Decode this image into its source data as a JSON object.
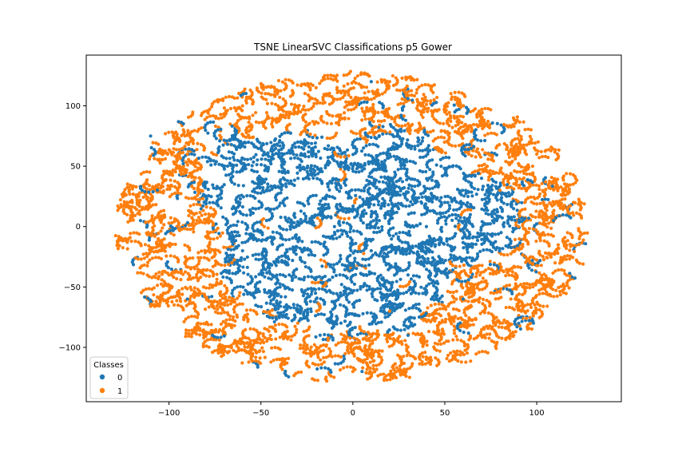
{
  "chart_data": {
    "type": "scatter",
    "title": "TSNE LinearSVC Classifications p5 Gower",
    "xlabel": "",
    "ylabel": "",
    "xlim": [
      -145,
      146
    ],
    "ylim": [
      -145,
      142
    ],
    "xticks": [
      -100,
      -50,
      0,
      50,
      100
    ],
    "yticks": [
      -100,
      -50,
      0,
      50,
      100
    ],
    "xtick_labels": [
      "−100",
      "−50",
      "0",
      "50",
      "100"
    ],
    "ytick_labels": [
      "−100",
      "−50",
      "0",
      "50",
      "100"
    ],
    "grid": false,
    "legend": {
      "title": "Classes",
      "position": "lower-left",
      "entries": [
        "0",
        "1"
      ]
    },
    "series": [
      {
        "name": "0",
        "color": "#1f77b4",
        "description": "dense central blob of t-SNE embedded points",
        "sample_points": [
          [
            -50,
            40
          ],
          [
            -30,
            20
          ],
          [
            -10,
            0
          ],
          [
            10,
            -20
          ],
          [
            30,
            -40
          ],
          [
            50,
            20
          ],
          [
            70,
            40
          ],
          [
            -60,
            -20
          ],
          [
            0,
            50
          ],
          [
            20,
            60
          ],
          [
            40,
            0
          ],
          [
            -20,
            -60
          ],
          [
            60,
            -60
          ],
          [
            -40,
            70
          ],
          [
            10,
            120
          ],
          [
            5,
            -120
          ],
          [
            -110,
            75
          ],
          [
            60,
            60
          ],
          [
            -90,
            -60
          ],
          [
            30,
            -90
          ]
        ]
      },
      {
        "name": "1",
        "color": "#ff7f0e",
        "description": "outer ring of t-SNE embedded points",
        "sample_points": [
          [
            -120,
            20
          ],
          [
            -100,
            -40
          ],
          [
            -90,
            60
          ],
          [
            -60,
            100
          ],
          [
            -20,
            115
          ],
          [
            20,
            120
          ],
          [
            60,
            100
          ],
          [
            100,
            60
          ],
          [
            120,
            20
          ],
          [
            110,
            -30
          ],
          [
            80,
            -80
          ],
          [
            40,
            -110
          ],
          [
            0,
            -120
          ],
          [
            -40,
            -110
          ],
          [
            -80,
            -90
          ],
          [
            -110,
            -20
          ],
          [
            90,
            0
          ],
          [
            20,
            -70
          ],
          [
            -30,
            -80
          ],
          [
            80,
            30
          ]
        ]
      }
    ]
  }
}
